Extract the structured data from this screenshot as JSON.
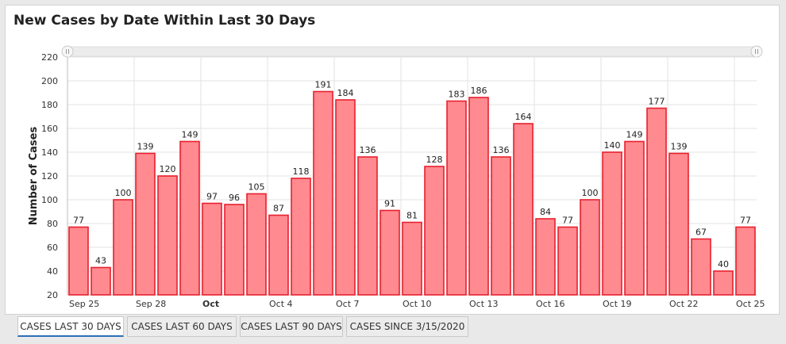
{
  "chart_data": {
    "type": "bar",
    "title": "New Cases by Date Within Last 30 Days",
    "ylabel": "Number of Cases",
    "ylim": [
      20,
      220
    ],
    "yticks": [
      20,
      40,
      60,
      80,
      100,
      120,
      140,
      160,
      180,
      200,
      220
    ],
    "categories": [
      "Sep 25",
      "Sep 26",
      "Sep 27",
      "Sep 28",
      "Sep 29",
      "Sep 30",
      "Oct 1",
      "Oct 2",
      "Oct 3",
      "Oct 4",
      "Oct 5",
      "Oct 6",
      "Oct 7",
      "Oct 8",
      "Oct 9",
      "Oct 10",
      "Oct 11",
      "Oct 12",
      "Oct 13",
      "Oct 14",
      "Oct 15",
      "Oct 16",
      "Oct 17",
      "Oct 18",
      "Oct 19",
      "Oct 20",
      "Oct 21",
      "Oct 22",
      "Oct 23",
      "Oct 24",
      "Oct 25"
    ],
    "values": [
      77,
      43,
      100,
      139,
      120,
      149,
      97,
      96,
      105,
      87,
      118,
      191,
      184,
      136,
      91,
      81,
      128,
      183,
      186,
      136,
      164,
      84,
      77,
      100,
      140,
      149,
      177,
      139,
      67,
      40,
      77
    ],
    "x_tick_labels": [
      {
        "category": "Sep 25",
        "label": "Sep 25",
        "bold": false
      },
      {
        "category": "Sep 28",
        "label": "Sep 28",
        "bold": false
      },
      {
        "category": "Oct 1",
        "label": "Oct",
        "bold": true
      },
      {
        "category": "Oct 4",
        "label": "Oct 4",
        "bold": false
      },
      {
        "category": "Oct 7",
        "label": "Oct 7",
        "bold": false
      },
      {
        "category": "Oct 10",
        "label": "Oct 10",
        "bold": false
      },
      {
        "category": "Oct 13",
        "label": "Oct 13",
        "bold": false
      },
      {
        "category": "Oct 16",
        "label": "Oct 16",
        "bold": false
      },
      {
        "category": "Oct 19",
        "label": "Oct 19",
        "bold": false
      },
      {
        "category": "Oct 22",
        "label": "Oct 22",
        "bold": false
      },
      {
        "category": "Oct 25",
        "label": "Oct 25",
        "bold": false
      }
    ],
    "grid": true,
    "data_labels": true,
    "bar_fill": "#ff8a8f",
    "bar_stroke": "#e8202e"
  },
  "tabs": [
    {
      "label": "CASES LAST 30 DAYS",
      "active": true
    },
    {
      "label": "CASES LAST 60 DAYS",
      "active": false
    },
    {
      "label": "CASES LAST 90 DAYS",
      "active": false
    },
    {
      "label": "CASES SINCE 3/15/2020",
      "active": false
    }
  ],
  "scrollbar": {
    "handle_icon": "grip-handle-icon"
  }
}
